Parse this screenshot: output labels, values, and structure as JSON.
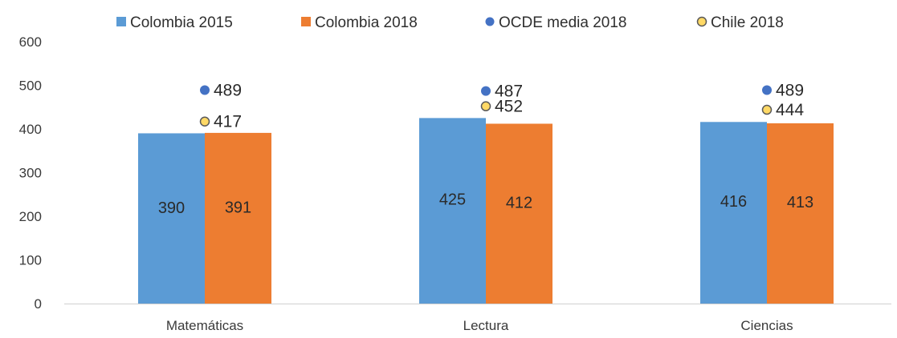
{
  "chart_data": {
    "type": "bar",
    "categories": [
      "Matemáticas",
      "Lectura",
      "Ciencias"
    ],
    "series": [
      {
        "name": "Colombia 2015",
        "kind": "bar",
        "color": "#5b9bd5",
        "values": [
          390,
          425,
          416
        ]
      },
      {
        "name": "Colombia 2018",
        "kind": "bar",
        "color": "#ed7d31",
        "values": [
          391,
          412,
          413
        ]
      },
      {
        "name": "OCDE media 2018",
        "kind": "point",
        "marker": "filled-circle",
        "color": "#4472c4",
        "values": [
          489,
          487,
          489
        ]
      },
      {
        "name": "Chile 2018",
        "kind": "point",
        "marker": "hollow-circle",
        "color": "#ffd966",
        "edge_color": "#595959",
        "values": [
          417,
          452,
          444
        ]
      }
    ],
    "yticks": [
      0,
      100,
      200,
      300,
      400,
      500,
      600
    ],
    "ylim": [
      0,
      600
    ],
    "grid": false,
    "legend": "top-center",
    "title": "",
    "xlabel": "",
    "ylabel": ""
  }
}
